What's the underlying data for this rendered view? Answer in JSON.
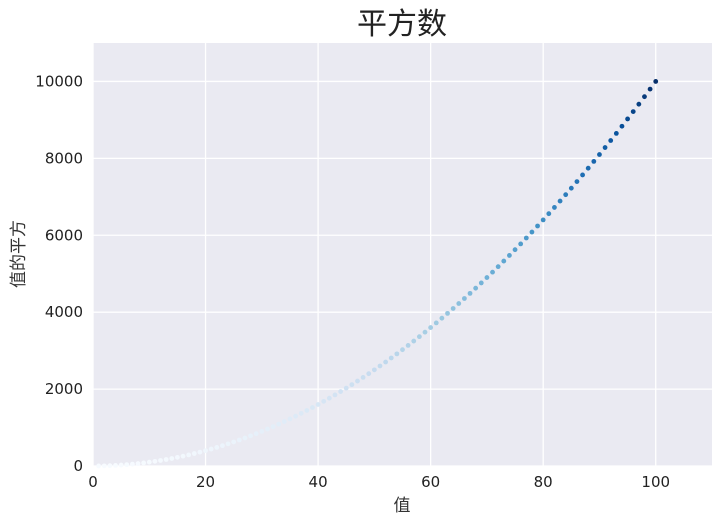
{
  "chart_data": {
    "type": "scatter",
    "title": "平方数",
    "xlabel": "值",
    "ylabel": "值的平方",
    "xlim": [
      0,
      110
    ],
    "ylim": [
      0,
      11000
    ],
    "xticks": [
      0,
      20,
      40,
      60,
      80,
      100
    ],
    "xtick_labels": [
      "0",
      "20",
      "40",
      "60",
      "80",
      "100"
    ],
    "yticks": [
      0,
      2000,
      4000,
      6000,
      8000,
      10000
    ],
    "ytick_labels": [
      "0",
      "2000",
      "4000",
      "6000",
      "8000",
      "10000"
    ],
    "grid": true,
    "x": [
      1,
      2,
      3,
      4,
      5,
      6,
      7,
      8,
      9,
      10,
      11,
      12,
      13,
      14,
      15,
      16,
      17,
      18,
      19,
      20,
      21,
      22,
      23,
      24,
      25,
      26,
      27,
      28,
      29,
      30,
      31,
      32,
      33,
      34,
      35,
      36,
      37,
      38,
      39,
      40,
      41,
      42,
      43,
      44,
      45,
      46,
      47,
      48,
      49,
      50,
      51,
      52,
      53,
      54,
      55,
      56,
      57,
      58,
      59,
      60,
      61,
      62,
      63,
      64,
      65,
      66,
      67,
      68,
      69,
      70,
      71,
      72,
      73,
      74,
      75,
      76,
      77,
      78,
      79,
      80,
      81,
      82,
      83,
      84,
      85,
      86,
      87,
      88,
      89,
      90,
      91,
      92,
      93,
      94,
      95,
      96,
      97,
      98,
      99,
      100
    ],
    "y": [
      1,
      4,
      9,
      16,
      25,
      36,
      49,
      64,
      81,
      100,
      121,
      144,
      169,
      196,
      225,
      256,
      289,
      324,
      361,
      400,
      441,
      484,
      529,
      576,
      625,
      676,
      729,
      784,
      841,
      900,
      961,
      1024,
      1089,
      1156,
      1225,
      1296,
      1369,
      1444,
      1521,
      1600,
      1681,
      1764,
      1849,
      1936,
      2025,
      2116,
      2209,
      2304,
      2401,
      2500,
      2601,
      2704,
      2809,
      2916,
      3025,
      3136,
      3249,
      3364,
      3481,
      3600,
      3721,
      3844,
      3969,
      4096,
      4225,
      4356,
      4489,
      4624,
      4761,
      4900,
      5041,
      5184,
      5329,
      5476,
      5625,
      5776,
      5929,
      6084,
      6241,
      6400,
      6561,
      6724,
      6889,
      7056,
      7225,
      7396,
      7569,
      7744,
      7921,
      8100,
      8281,
      8464,
      8649,
      8836,
      9025,
      9216,
      9409,
      9604,
      9801,
      10000
    ],
    "colormap": "Blues",
    "colors": {
      "plot_background": "#eaeaf2",
      "grid": "#ffffff",
      "colormap_low": "#f7fbff",
      "colormap_high": "#08306b"
    }
  }
}
